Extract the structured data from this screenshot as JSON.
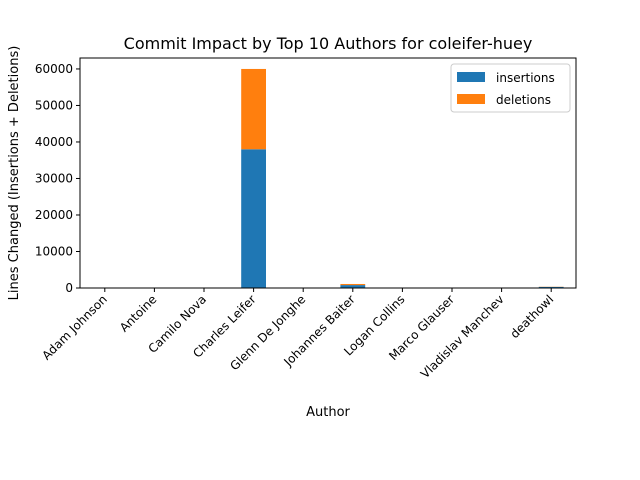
{
  "chart_data": {
    "type": "bar",
    "stacked": true,
    "title": "Commit Impact by Top 10 Authors for coleifer-huey",
    "xlabel": "Author",
    "ylabel": "Lines Changed (Insertions + Deletions)",
    "ylim": [
      0,
      63000
    ],
    "yticks": [
      0,
      10000,
      20000,
      30000,
      40000,
      50000,
      60000
    ],
    "grid": false,
    "legend_position": "top-right",
    "categories": [
      "Adam Johnson",
      "Antoine",
      "Camilo Nova",
      "Charles Leifer",
      "Glenn De Jonghe",
      "Johannes Baiter",
      "Logan Collins",
      "Marco Glauser",
      "Vladislav Manchev",
      "deathowl"
    ],
    "series": [
      {
        "name": "insertions",
        "color": "#1f77b4",
        "values": [
          10,
          10,
          30,
          38000,
          10,
          800,
          10,
          10,
          10,
          300
        ]
      },
      {
        "name": "deletions",
        "color": "#ff7f0e",
        "values": [
          2,
          2,
          5,
          22000,
          2,
          300,
          2,
          2,
          2,
          50
        ]
      }
    ]
  }
}
